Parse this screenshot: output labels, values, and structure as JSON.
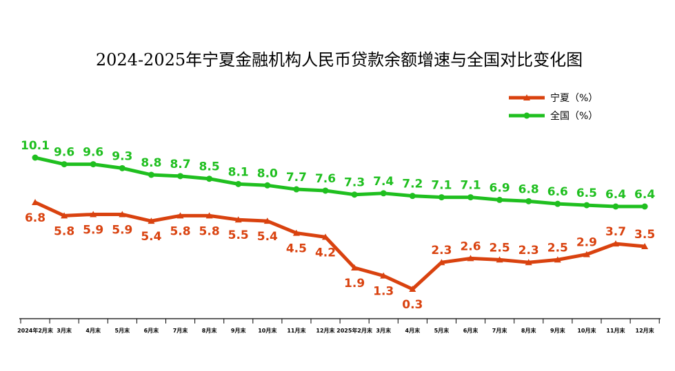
{
  "chart_data": {
    "type": "line",
    "title": "2024-2025年宁夏金融机构人民币贷款余额增速与全国对比变化图",
    "categories": [
      "2024年2月末",
      "3月末",
      "4月末",
      "5月末",
      "6月末",
      "7月末",
      "8月末",
      "9月末",
      "10月末",
      "11月末",
      "12月末",
      "2025年2月末",
      "3月末",
      "4月末",
      "5月末",
      "6月末",
      "7月末",
      "8月末",
      "9月末",
      "10月末",
      "11月末",
      "12月末"
    ],
    "series": [
      {
        "name": "宁夏（%）",
        "color": "#d9420f",
        "marker": "triangle",
        "values": [
          6.8,
          5.8,
          5.9,
          5.9,
          5.4,
          5.8,
          5.8,
          5.5,
          5.4,
          4.5,
          4.2,
          1.9,
          1.3,
          0.3,
          2.3,
          2.6,
          2.5,
          2.3,
          2.5,
          2.9,
          3.7,
          3.5
        ]
      },
      {
        "name": "全国（%）",
        "color": "#1fbf1f",
        "marker": "circle",
        "values": [
          10.1,
          9.6,
          9.6,
          9.3,
          8.8,
          8.7,
          8.5,
          8.1,
          8.0,
          7.7,
          7.6,
          7.3,
          7.4,
          7.2,
          7.1,
          7.1,
          6.9,
          6.8,
          6.6,
          6.5,
          6.4,
          6.4
        ]
      }
    ],
    "legend_position": "top-right",
    "grid": false
  }
}
